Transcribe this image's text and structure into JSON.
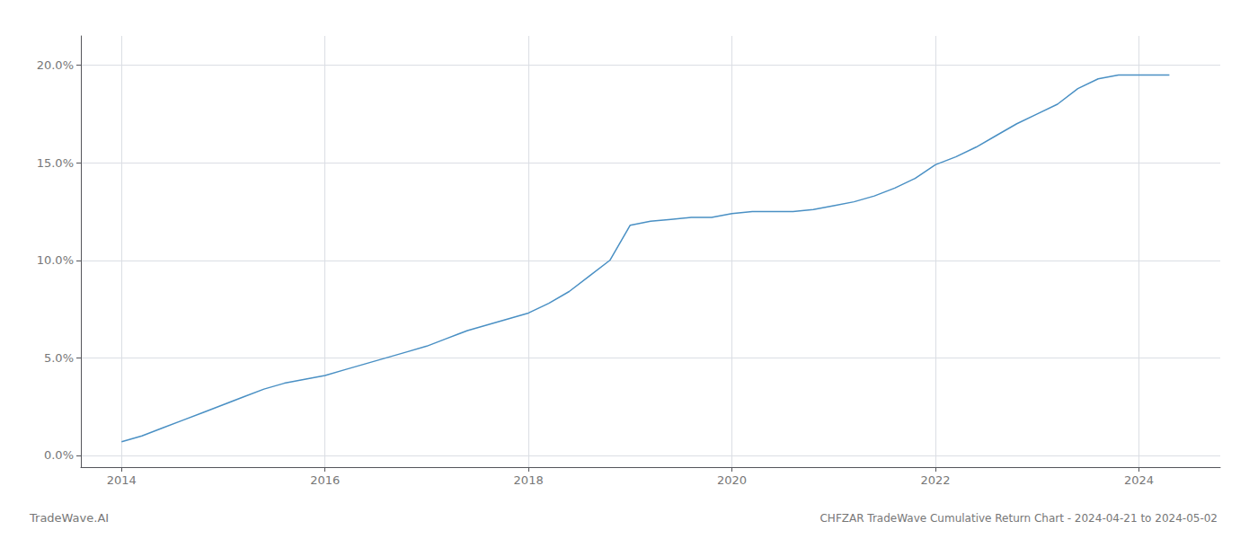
{
  "chart_data": {
    "type": "line",
    "title": "CHFZAR TradeWave Cumulative Return Chart - 2024-04-21 to 2024-05-02",
    "watermark": "TradeWave.AI",
    "color": "#4a90c4",
    "grid": true,
    "x": [
      2014.0,
      2014.2,
      2014.4,
      2014.6,
      2014.8,
      2015.0,
      2015.2,
      2015.4,
      2015.6,
      2015.8,
      2016.0,
      2016.2,
      2016.4,
      2016.6,
      2016.8,
      2017.0,
      2017.2,
      2017.4,
      2017.6,
      2017.8,
      2018.0,
      2018.2,
      2018.4,
      2018.6,
      2018.8,
      2019.0,
      2019.2,
      2019.4,
      2019.6,
      2019.8,
      2020.0,
      2020.2,
      2020.4,
      2020.6,
      2020.8,
      2021.0,
      2021.2,
      2021.4,
      2021.6,
      2021.8,
      2022.0,
      2022.2,
      2022.4,
      2022.6,
      2022.8,
      2023.0,
      2023.2,
      2023.4,
      2023.6,
      2023.8,
      2024.0,
      2024.3
    ],
    "values": [
      0.007,
      0.01,
      0.014,
      0.018,
      0.022,
      0.026,
      0.03,
      0.034,
      0.037,
      0.039,
      0.041,
      0.044,
      0.047,
      0.05,
      0.053,
      0.056,
      0.06,
      0.064,
      0.067,
      0.07,
      0.073,
      0.078,
      0.084,
      0.092,
      0.1,
      0.118,
      0.12,
      0.121,
      0.122,
      0.122,
      0.124,
      0.125,
      0.125,
      0.125,
      0.126,
      0.128,
      0.13,
      0.133,
      0.137,
      0.142,
      0.149,
      0.153,
      0.158,
      0.164,
      0.17,
      0.175,
      0.18,
      0.188,
      0.193,
      0.195,
      0.195,
      0.195
    ],
    "xlim": [
      2013.6,
      2024.8
    ],
    "xticks": [
      2014,
      2016,
      2018,
      2020,
      2022,
      2024
    ],
    "ylim": [
      -0.006,
      0.215
    ],
    "yticks": [
      {
        "value": 0.0,
        "label": "0.0%"
      },
      {
        "value": 0.05,
        "label": "5.0%"
      },
      {
        "value": 0.1,
        "label": "10.0%"
      },
      {
        "value": 0.15,
        "label": "15.0%"
      },
      {
        "value": 0.2,
        "label": "20.0%"
      }
    ]
  }
}
